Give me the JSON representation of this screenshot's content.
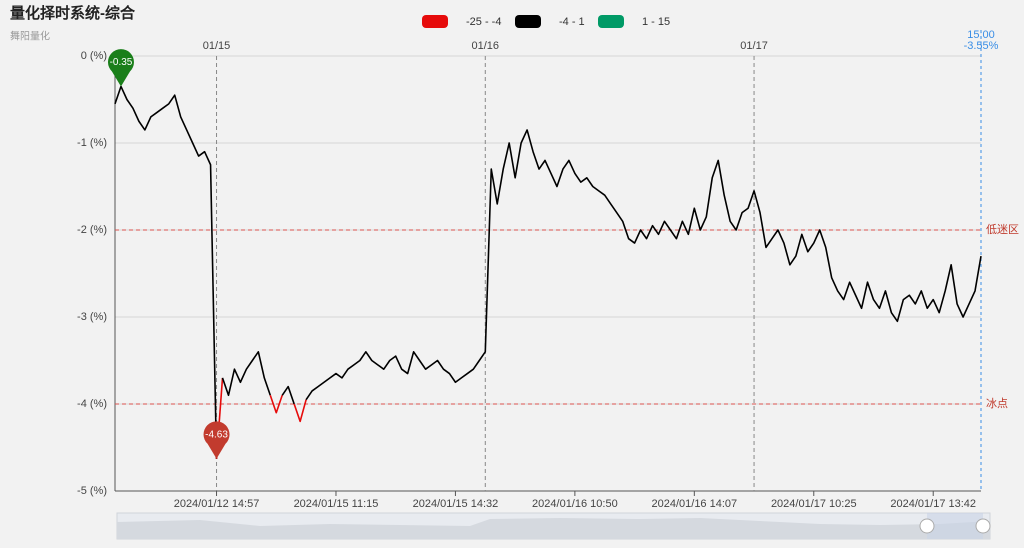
{
  "chart_data": {
    "type": "line",
    "title": "量化择时系统-综合",
    "subtitle": "舞阳量化",
    "annotations": [
      "15:00",
      "-3.55%"
    ],
    "visual_map": [
      {
        "label": "-25 - -4",
        "min": -25,
        "max": -4,
        "color": "#e60b0b"
      },
      {
        "label": "-4 - 1",
        "min": -4,
        "max": 1,
        "color": "#000000"
      },
      {
        "label": "1 - 15",
        "min": 1,
        "max": 15,
        "color": "#009a66"
      }
    ],
    "mark_points": [
      "max",
      "min"
    ],
    "mark_lines": [
      {
        "value": -2,
        "label": "低迷区"
      },
      {
        "value": -4,
        "label": "冰点"
      }
    ],
    "ylim": [
      -5,
      0
    ],
    "yticks": [
      {
        "value": 0,
        "label": "0 (%)"
      },
      {
        "value": -1,
        "label": "-1 (%)"
      },
      {
        "value": -2,
        "label": "-2 (%)"
      },
      {
        "value": -3,
        "label": "-3 (%)"
      },
      {
        "value": -4,
        "label": "-4 (%)"
      },
      {
        "value": -5,
        "label": "-5 (%)"
      }
    ],
    "grid": true,
    "categories": [
      null,
      null,
      null,
      null,
      null,
      null,
      null,
      null,
      null,
      null,
      null,
      null,
      null,
      null,
      null,
      null,
      null,
      "2024/01/12 14:57",
      null,
      null,
      null,
      null,
      null,
      null,
      null,
      null,
      null,
      null,
      null,
      null,
      null,
      null,
      null,
      null,
      null,
      null,
      null,
      "2024/01/15 11:15",
      null,
      null,
      null,
      null,
      null,
      null,
      null,
      null,
      null,
      null,
      null,
      null,
      null,
      null,
      null,
      null,
      null,
      null,
      null,
      "2024/01/15 14:32",
      null,
      null,
      null,
      null,
      null,
      null,
      null,
      null,
      null,
      null,
      null,
      null,
      null,
      null,
      null,
      null,
      null,
      null,
      null,
      "2024/01/16 10:50",
      null,
      null,
      null,
      null,
      null,
      null,
      null,
      null,
      null,
      null,
      null,
      null,
      null,
      null,
      null,
      null,
      null,
      null,
      null,
      "2024/01/16 14:07",
      null,
      null,
      null,
      null,
      null,
      null,
      null,
      null,
      null,
      null,
      null,
      null,
      null,
      null,
      null,
      null,
      null,
      null,
      null,
      "2024/01/17 10:25",
      null,
      null,
      null,
      null,
      null,
      null,
      null,
      null,
      null,
      null,
      null,
      null,
      null,
      null,
      null,
      null,
      null,
      null,
      null,
      "2024/01/17 13:42",
      null,
      null,
      null,
      null,
      null,
      null,
      null,
      null
    ],
    "top_categories": [
      null,
      null,
      null,
      null,
      null,
      null,
      null,
      null,
      null,
      null,
      null,
      null,
      null,
      null,
      null,
      null,
      null,
      "01/15",
      null,
      null,
      null,
      null,
      null,
      null,
      null,
      null,
      null,
      null,
      null,
      null,
      null,
      null,
      null,
      null,
      null,
      null,
      null,
      null,
      null,
      null,
      null,
      null,
      null,
      null,
      null,
      null,
      null,
      null,
      null,
      null,
      null,
      null,
      null,
      null,
      null,
      null,
      null,
      null,
      null,
      null,
      null,
      null,
      "01/16",
      null,
      null,
      null,
      null,
      null,
      null,
      null,
      null,
      null,
      null,
      null,
      null,
      null,
      null,
      null,
      null,
      null,
      null,
      null,
      null,
      null,
      null,
      null,
      null,
      null,
      null,
      null,
      null,
      null,
      null,
      null,
      null,
      null,
      null,
      null,
      null,
      null,
      null,
      null,
      null,
      null,
      null,
      null,
      null,
      "01/17",
      null,
      null,
      null,
      null,
      null,
      null,
      null,
      null,
      null,
      null,
      null,
      null,
      null,
      null,
      null,
      null,
      null,
      null,
      null,
      null,
      null,
      null,
      null,
      null,
      null,
      null,
      null,
      null,
      null,
      null,
      null,
      null,
      null,
      null,
      null,
      null,
      null,
      null
    ],
    "series": [
      {
        "values": [
          -0.55,
          -0.35,
          -0.5,
          -0.6,
          -0.75,
          -0.85,
          -0.7,
          -0.65,
          -0.6,
          -0.55,
          -0.45,
          -0.7,
          -0.85,
          -1.0,
          -1.15,
          -1.1,
          -1.25,
          -4.63,
          -3.7,
          -3.9,
          -3.6,
          -3.75,
          -3.6,
          -3.5,
          -3.4,
          -3.7,
          -3.9,
          -4.1,
          -3.9,
          -3.8,
          -4.0,
          -4.2,
          -3.95,
          -3.85,
          -3.8,
          -3.75,
          -3.7,
          -3.65,
          -3.7,
          -3.6,
          -3.55,
          -3.5,
          -3.4,
          -3.5,
          -3.55,
          -3.6,
          -3.5,
          -3.45,
          -3.6,
          -3.65,
          -3.4,
          -3.5,
          -3.6,
          -3.55,
          -3.5,
          -3.6,
          -3.65,
          -3.75,
          -3.7,
          -3.65,
          -3.6,
          -3.5,
          -3.4,
          -1.3,
          -1.7,
          -1.3,
          -1.0,
          -1.4,
          -1.0,
          -0.85,
          -1.1,
          -1.3,
          -1.2,
          -1.35,
          -1.5,
          -1.3,
          -1.2,
          -1.35,
          -1.45,
          -1.4,
          -1.5,
          -1.55,
          -1.6,
          -1.7,
          -1.8,
          -1.9,
          -2.1,
          -2.15,
          -2.0,
          -2.1,
          -1.95,
          -2.05,
          -1.9,
          -2.0,
          -2.1,
          -1.9,
          -2.05,
          -1.75,
          -2.0,
          -1.85,
          -1.4,
          -1.2,
          -1.6,
          -1.9,
          -2.0,
          -1.8,
          -1.75,
          -1.55,
          -1.8,
          -2.2,
          -2.1,
          -2.0,
          -2.15,
          -2.4,
          -2.3,
          -2.05,
          -2.25,
          -2.15,
          -2.0,
          -2.2,
          -2.55,
          -2.7,
          -2.8,
          -2.6,
          -2.75,
          -2.9,
          -2.6,
          -2.8,
          -2.9,
          -2.7,
          -2.95,
          -3.05,
          -2.8,
          -2.75,
          -2.85,
          -2.7,
          -2.9,
          -2.8,
          -2.95,
          -2.7,
          -2.4,
          -2.85,
          -3.0,
          -2.85,
          -2.7,
          -2.3
        ]
      }
    ]
  }
}
